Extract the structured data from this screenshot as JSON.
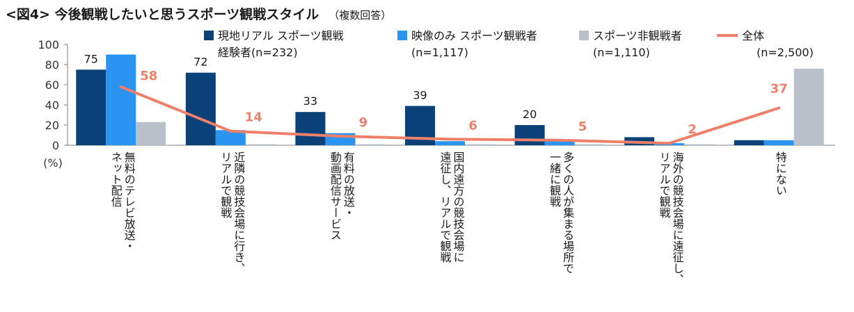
{
  "title": "<図4> 今後観戦したいと思うスポーツ観戦スタイル",
  "subtitle": "（複数回答）",
  "chart_data": {
    "type": "bar",
    "ylabel": "(%)",
    "ylim": [
      0,
      100
    ],
    "yticks": [
      0,
      20,
      40,
      60,
      80,
      100
    ],
    "categories": [
      [
        "無料のテレビ放送・",
        "ネット配信"
      ],
      [
        "近隣の競技会場に行き、",
        "リアルで観戦"
      ],
      [
        "有料の放送・",
        "動画配信サービス"
      ],
      [
        "国内遠方の競技会場に",
        "遠征し、リアルで観戦"
      ],
      [
        "多くの人が集まる場所で",
        "一緒に観戦"
      ],
      [
        "海外の競技会場に遠征し、",
        "リアルで観戦"
      ],
      [
        "特にない"
      ]
    ],
    "series": [
      {
        "name": "現地リアル スポーツ観戦\n経験者(n=232)",
        "legend_lines": [
          "現地リアル スポーツ観戦",
          "経験者(n=232)"
        ],
        "color": "#0b4179",
        "values": [
          75,
          72,
          33,
          39,
          20,
          8,
          5
        ],
        "labels": [
          "75",
          "72",
          "33",
          "39",
          "20",
          "",
          ""
        ]
      },
      {
        "name": "映像のみ スポーツ観戦者\n(n=1,117)",
        "legend_lines": [
          "映像のみ スポーツ観戦者",
          "(n=1,117)"
        ],
        "color": "#2b93f0",
        "values": [
          90,
          15,
          12,
          4,
          5,
          2,
          5
        ],
        "labels": []
      },
      {
        "name": "スポーツ非観戦者\n(n=1,110)",
        "legend_lines": [
          "スポーツ非観戦者",
          "(n=1,110)"
        ],
        "color": "#b9c0c9",
        "values": [
          23,
          1,
          1,
          1,
          1,
          1,
          76
        ],
        "labels": []
      }
    ],
    "total": {
      "name": "全体\n(n=2,500)",
      "legend_lines": [
        "全体",
        "(n=2,500)"
      ],
      "color": "#ee7f6b",
      "values": [
        58,
        14,
        9,
        6,
        5,
        2,
        37
      ],
      "labels": [
        "58",
        "14",
        "9",
        "6",
        "5",
        "2",
        "37"
      ]
    }
  }
}
